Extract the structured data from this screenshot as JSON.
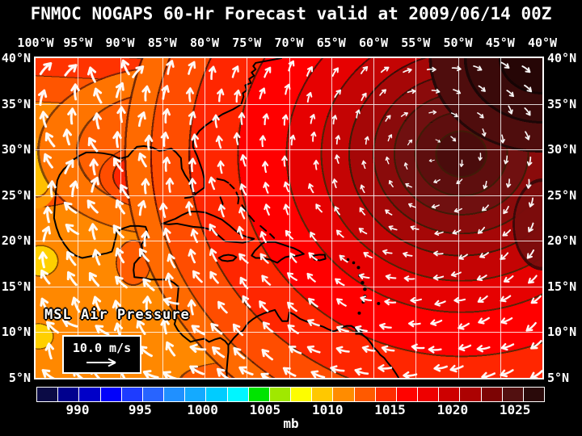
{
  "title": "FNMOC NOGAPS 60-Hr Forecast valid at 2009/06/14 00Z",
  "map": {
    "top_axis_labels": [
      "100°W",
      "95°W",
      "90°W",
      "85°W",
      "80°W",
      "75°W",
      "70°W",
      "65°W",
      "60°W",
      "55°W",
      "50°W",
      "45°W",
      "40°W"
    ],
    "left_axis_labels": [
      "40°N",
      "35°N",
      "30°N",
      "25°N",
      "20°N",
      "15°N",
      "10°N",
      "5°N"
    ],
    "right_axis_labels": [
      "40°N",
      "35°N",
      "30°N",
      "25°N",
      "20°N",
      "15°N",
      "10°N",
      "5°N"
    ],
    "field_label": "MSL Air Pressure",
    "wind_legend_label": "10.0 m/s"
  },
  "colorbar": {
    "unit_label": "mb",
    "tick_labels": [
      "990",
      "995",
      "1000",
      "1005",
      "1010",
      "1015",
      "1020",
      "1025"
    ],
    "tick_values": [
      990,
      995,
      1000,
      1005,
      1010,
      1015,
      1020,
      1025
    ],
    "segment_colors": [
      "#0b0b45",
      "#00008e",
      "#0000c8",
      "#0202fa",
      "#1e3cff",
      "#2864ff",
      "#2090ff",
      "#14aaff",
      "#00ccff",
      "#00f6ff",
      "#00e400",
      "#a0e800",
      "#fdfd00",
      "#ffc800",
      "#ff8c00",
      "#ff5a00",
      "#ff2d00",
      "#ff0300",
      "#ee0000",
      "#cd0000",
      "#ac0202",
      "#7c0404",
      "#521010",
      "#2a0a0a"
    ]
  },
  "chart_data": {
    "type": "heatmap",
    "title": "FNMOC NOGAPS 60-Hr Forecast valid at 2009/06/14 00Z",
    "field": "MSL Air Pressure",
    "unit": "mb",
    "x_axis_deg_west": [
      100,
      95,
      90,
      85,
      80,
      75,
      70,
      65,
      60,
      55,
      50,
      45,
      40
    ],
    "y_axis_deg_north": [
      40,
      35,
      30,
      25,
      20,
      15,
      10,
      5
    ],
    "colorbar_ticks_mb": [
      990,
      995,
      1000,
      1005,
      1010,
      1015,
      1020,
      1025
    ],
    "overlay": "white wind vectors, reference arrow 10.0 m/s",
    "legend_position": "bottom colorbar",
    "grid": true
  }
}
